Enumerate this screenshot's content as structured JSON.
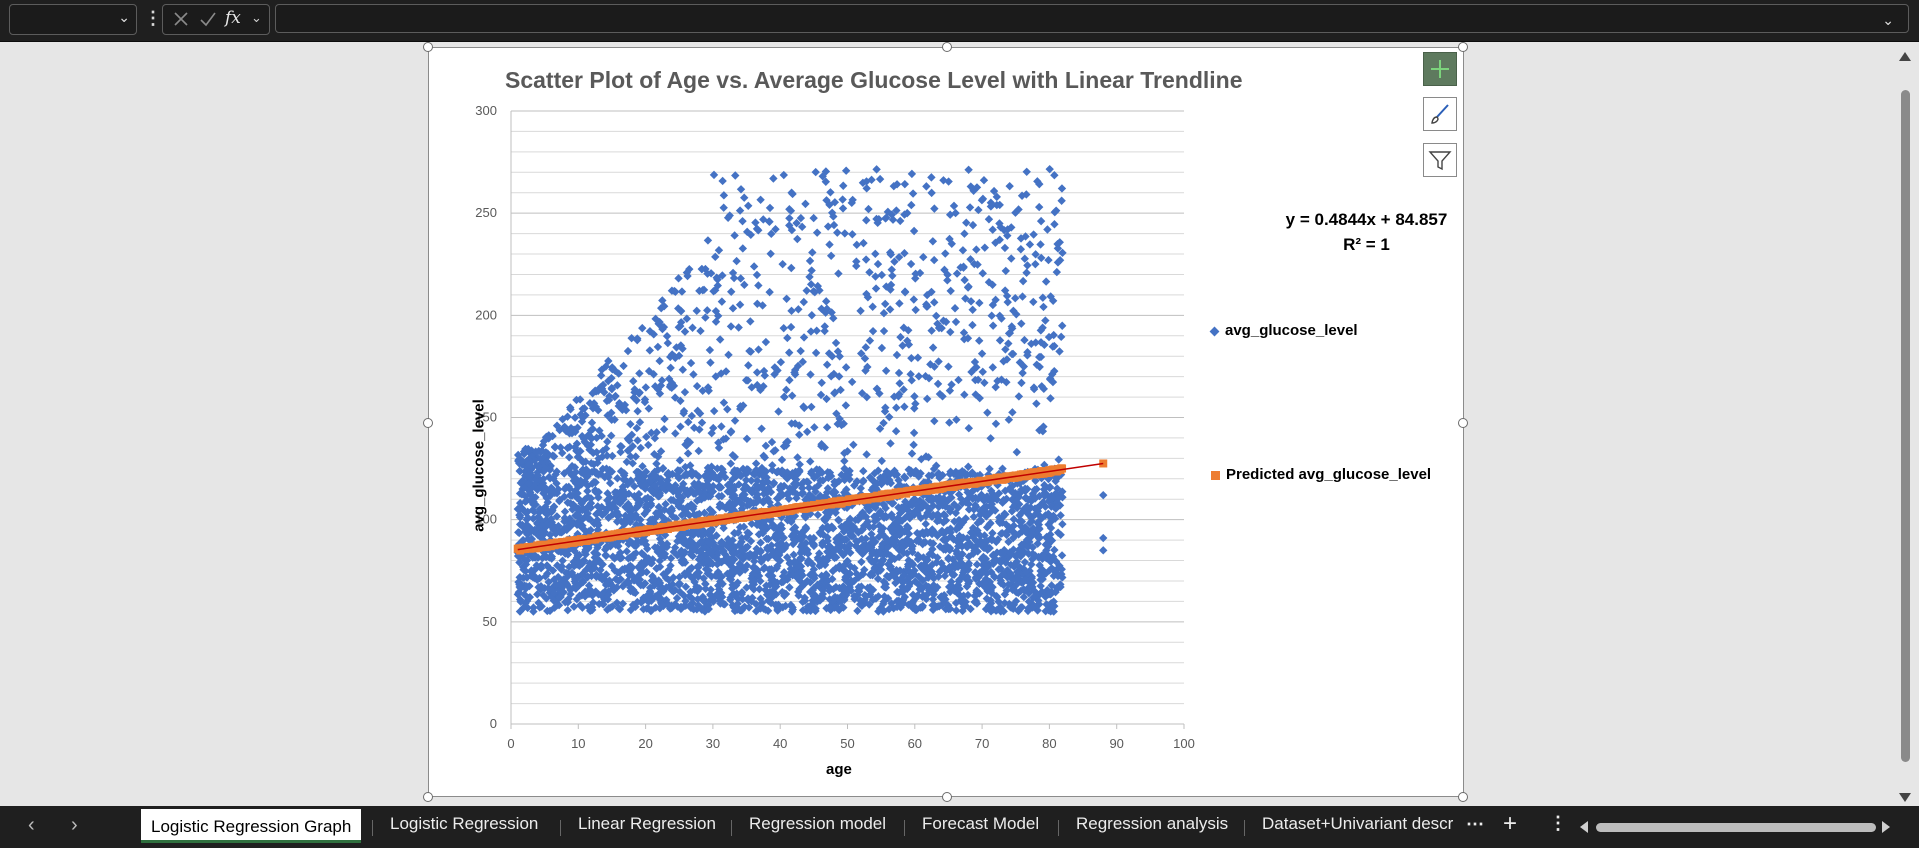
{
  "formula_bar": {
    "name_box_value": "",
    "formula_value": "",
    "fx_label": "fx"
  },
  "chart": {
    "title": "Scatter Plot of Age vs. Average Glucose Level with Linear Trendline",
    "x_axis_title": "age",
    "y_axis_title": "avg_glucose_level",
    "trendline_equation": "y = 0.4844x + 84.857",
    "r_squared": "R² = 1",
    "legend": [
      {
        "label": "avg_glucose_level",
        "marker": "diamond",
        "color": "#4472c4"
      },
      {
        "label": "Predicted avg_glucose_level",
        "marker": "square",
        "color": "#ed7d31"
      }
    ],
    "trendline_color": "#c00000"
  },
  "chart_data": {
    "type": "scatter",
    "title": "Scatter Plot of Age vs. Average Glucose Level with Linear Trendline",
    "xlabel": "age",
    "ylabel": "avg_glucose_level",
    "xlim": [
      0,
      100
    ],
    "ylim": [
      0,
      300
    ],
    "x_ticks": [
      0,
      10,
      20,
      30,
      40,
      50,
      60,
      70,
      80,
      90,
      100
    ],
    "y_ticks": [
      0,
      50,
      100,
      150,
      200,
      250,
      300
    ],
    "grid": "horizontal minor lines every 10",
    "legend_position": "right",
    "series": [
      {
        "name": "avg_glucose_level",
        "marker": "diamond",
        "color": "#4472c4",
        "x_range": [
          1,
          82
        ],
        "y_range": [
          55,
          272
        ],
        "dense_band": [
          55,
          125
        ],
        "outlier_points": [
          {
            "x": 88,
            "y": 112
          },
          {
            "x": 88,
            "y": 91
          },
          {
            "x": 88,
            "y": 85
          }
        ]
      },
      {
        "name": "Predicted avg_glucose_level",
        "marker": "square",
        "color": "#ed7d31",
        "x_range": [
          1,
          82
        ],
        "extra_point": {
          "x": 88,
          "y": 127.5
        }
      }
    ],
    "trendline": {
      "slope": 0.4844,
      "intercept": 84.857,
      "r2": 1,
      "x_range": [
        1,
        88
      ]
    }
  },
  "tabs": [
    {
      "label": "Logistic Regression Graph",
      "active": true
    },
    {
      "label": "Logistic Regression",
      "active": false
    },
    {
      "label": "Linear Regression",
      "active": false
    },
    {
      "label": "Regression model",
      "active": false
    },
    {
      "label": "Forecast Model",
      "active": false
    },
    {
      "label": "Regression analysis",
      "active": false
    },
    {
      "label": "Dataset+Univariant descr",
      "active": false
    }
  ],
  "icons": {
    "prev_sheet": "chevron-left-icon",
    "next_sheet": "chevron-right-icon",
    "more_sheets": "ellipsis-icon",
    "add_sheet": "plus-icon",
    "sheet_menu": "vertical-ellipsis-icon",
    "chart_elements": "plus-icon",
    "chart_styles": "brush-icon",
    "chart_filters": "funnel-icon"
  }
}
